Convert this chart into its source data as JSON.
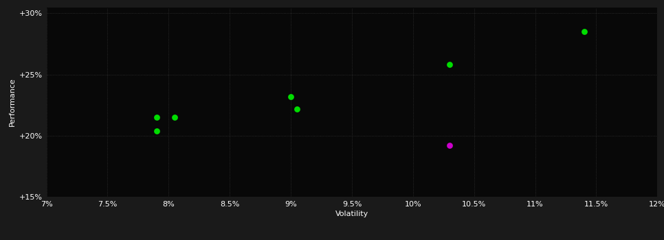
{
  "background_color": "#1a1a1a",
  "plot_bg_color": "#080808",
  "grid_color": "#333333",
  "text_color": "#ffffff",
  "xlabel": "Volatility",
  "ylabel": "Performance",
  "xlim": [
    0.07,
    0.12
  ],
  "ylim": [
    0.15,
    0.305
  ],
  "xticks": [
    0.07,
    0.075,
    0.08,
    0.085,
    0.09,
    0.095,
    0.1,
    0.105,
    0.11,
    0.115,
    0.12
  ],
  "yticks": [
    0.15,
    0.2,
    0.25,
    0.3
  ],
  "ytick_labels": [
    "+15%",
    "+20%",
    "+25%",
    "+30%"
  ],
  "xtick_labels": [
    "7%",
    "7.5%",
    "8%",
    "8.5%",
    "9%",
    "9.5%",
    "10%",
    "10.5%",
    "11%",
    "11.5%",
    "12%"
  ],
  "green_points": [
    [
      0.079,
      0.215
    ],
    [
      0.0805,
      0.215
    ],
    [
      0.079,
      0.204
    ],
    [
      0.09,
      0.232
    ],
    [
      0.0905,
      0.222
    ],
    [
      0.103,
      0.258
    ],
    [
      0.114,
      0.285
    ]
  ],
  "magenta_points": [
    [
      0.103,
      0.192
    ]
  ],
  "green_color": "#00dd00",
  "magenta_color": "#cc00cc",
  "marker_size": 40,
  "axis_fontsize": 8,
  "tick_fontsize": 8
}
